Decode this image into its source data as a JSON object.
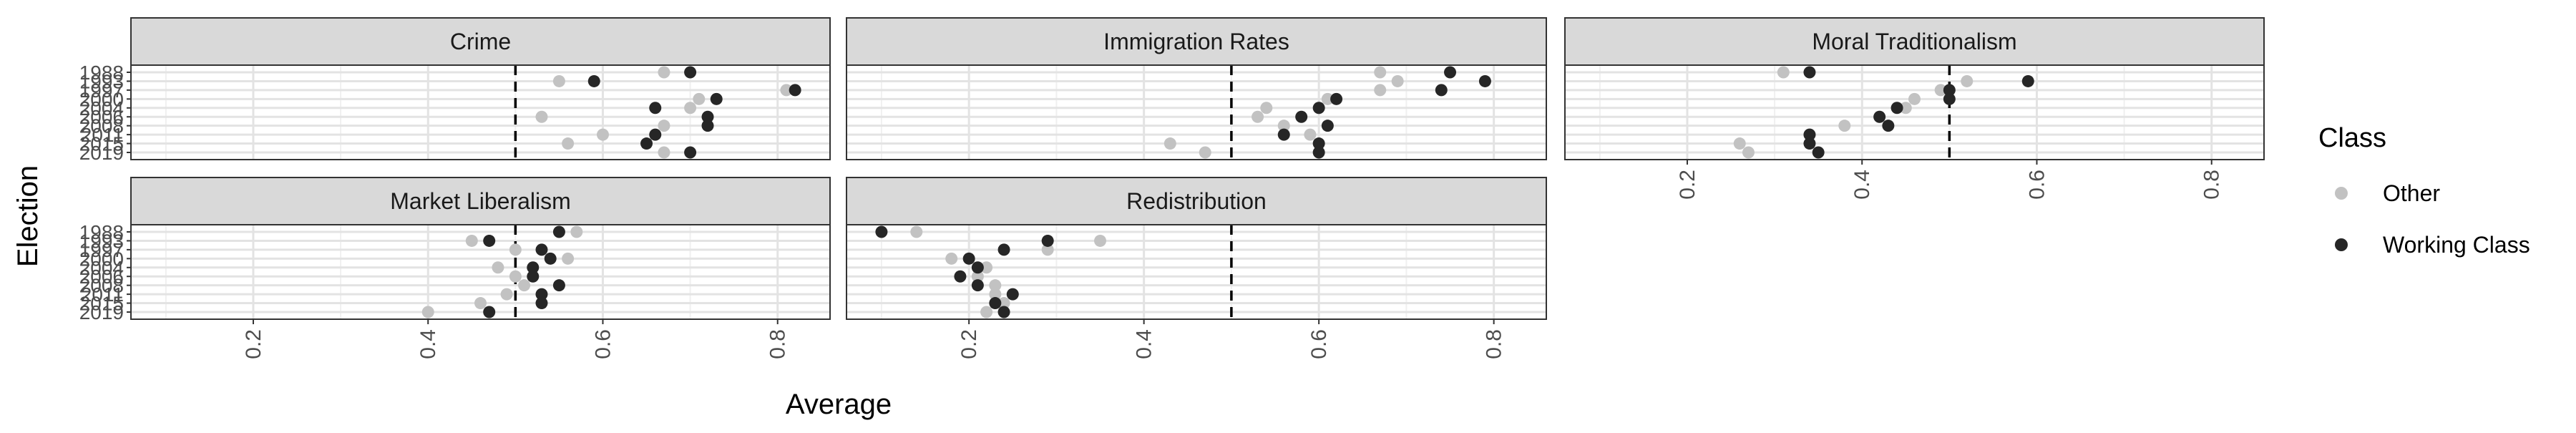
{
  "chart_data": {
    "type": "scatter",
    "facet_by": "issue",
    "y_categories": [
      "1988",
      "1993",
      "1997",
      "2000",
      "2004",
      "2006",
      "2008",
      "2011",
      "2015",
      "2019"
    ],
    "x_ticks": [
      "0.2",
      "0.4",
      "0.6",
      "0.8"
    ],
    "xlim": [
      0.06,
      0.86
    ],
    "reference_line_x": 0.5,
    "xlabel": "Average",
    "ylabel": "Election",
    "legend": {
      "title": "Class",
      "position": "right",
      "entries": [
        {
          "key": "other",
          "label": "Other",
          "color": "#c2c2c2"
        },
        {
          "key": "working",
          "label": "Working Class",
          "color": "#262626"
        }
      ]
    },
    "grid": true,
    "panels": [
      {
        "title": "Crime",
        "series": {
          "other": [
            0.67,
            0.55,
            0.81,
            0.71,
            0.7,
            0.53,
            0.67,
            0.6,
            0.56,
            0.67
          ],
          "working": [
            0.7,
            0.59,
            0.82,
            0.73,
            0.66,
            0.72,
            0.72,
            0.66,
            0.65,
            0.7
          ]
        }
      },
      {
        "title": "Immigration Rates",
        "series": {
          "other": [
            0.67,
            0.69,
            0.67,
            0.61,
            0.54,
            0.53,
            0.56,
            0.59,
            0.43,
            0.47
          ],
          "working": [
            0.75,
            0.79,
            0.74,
            0.62,
            0.6,
            0.58,
            0.61,
            0.56,
            0.6,
            0.6
          ]
        }
      },
      {
        "title": "Moral Traditionalism",
        "series": {
          "other": [
            0.31,
            0.52,
            0.49,
            0.46,
            0.45,
            0.42,
            0.38,
            0.34,
            0.26,
            0.27
          ],
          "working": [
            0.34,
            0.59,
            0.5,
            0.5,
            0.44,
            0.42,
            0.43,
            0.34,
            0.34,
            0.35
          ]
        }
      },
      {
        "title": "Market Liberalism",
        "series": {
          "other": [
            0.57,
            0.45,
            0.5,
            0.56,
            0.48,
            0.5,
            0.51,
            0.49,
            0.46,
            0.4
          ],
          "working": [
            0.55,
            0.47,
            0.53,
            0.54,
            0.52,
            0.52,
            0.55,
            0.53,
            0.53,
            0.47
          ]
        }
      },
      {
        "title": "Redistribution",
        "series": {
          "other": [
            0.14,
            0.35,
            0.29,
            0.18,
            0.22,
            0.21,
            0.23,
            0.23,
            0.24,
            0.22
          ],
          "working": [
            0.1,
            0.29,
            0.24,
            0.2,
            0.21,
            0.19,
            0.21,
            0.25,
            0.23,
            0.24
          ]
        }
      }
    ]
  }
}
